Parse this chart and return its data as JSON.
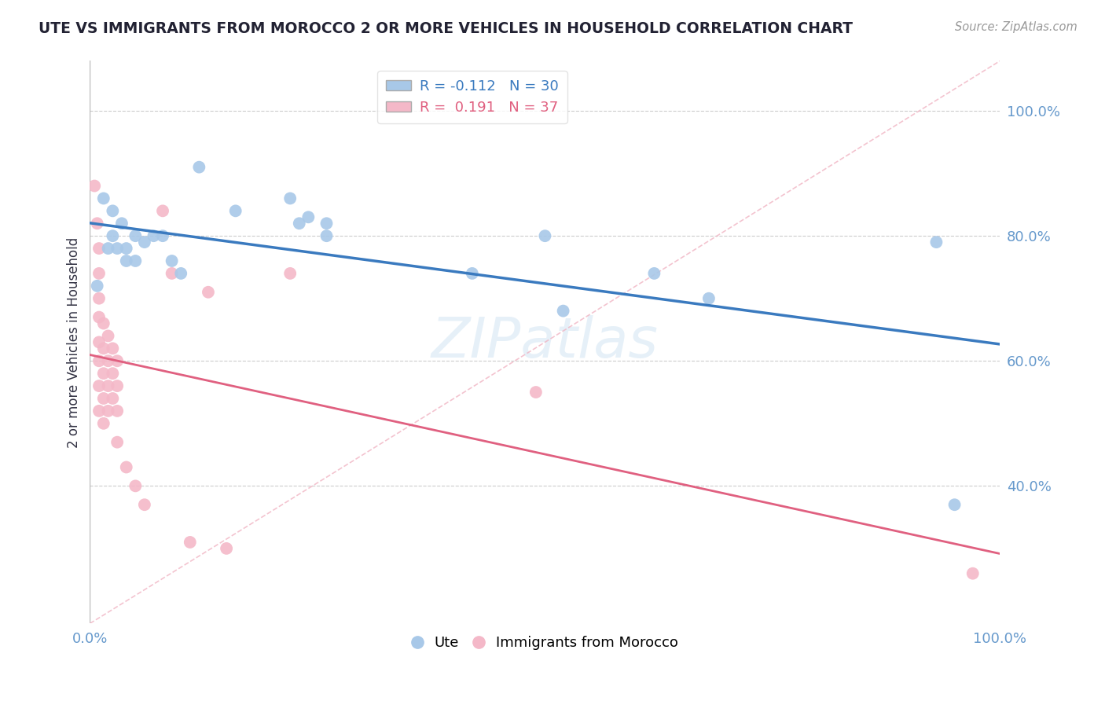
{
  "title": "UTE VS IMMIGRANTS FROM MOROCCO 2 OR MORE VEHICLES IN HOUSEHOLD CORRELATION CHART",
  "source": "Source: ZipAtlas.com",
  "ylabel": "2 or more Vehicles in Household",
  "legend_label1": "Ute",
  "legend_label2": "Immigrants from Morocco",
  "R1": -0.112,
  "N1": 30,
  "R2": 0.191,
  "N2": 37,
  "color_blue": "#a8c8e8",
  "color_pink": "#f4b8c8",
  "color_blue_line": "#3a7abf",
  "color_pink_line": "#e06080",
  "color_diag_line": "#f0b0c0",
  "background": "#ffffff",
  "grid_color": "#cccccc",
  "title_color": "#222233",
  "axis_label_color": "#6699cc",
  "blue_points": [
    [
      0.008,
      0.72
    ],
    [
      0.015,
      0.86
    ],
    [
      0.02,
      0.78
    ],
    [
      0.025,
      0.84
    ],
    [
      0.025,
      0.8
    ],
    [
      0.03,
      0.78
    ],
    [
      0.035,
      0.82
    ],
    [
      0.04,
      0.78
    ],
    [
      0.04,
      0.76
    ],
    [
      0.05,
      0.8
    ],
    [
      0.05,
      0.76
    ],
    [
      0.06,
      0.79
    ],
    [
      0.07,
      0.8
    ],
    [
      0.08,
      0.8
    ],
    [
      0.09,
      0.76
    ],
    [
      0.1,
      0.74
    ],
    [
      0.12,
      0.91
    ],
    [
      0.16,
      0.84
    ],
    [
      0.22,
      0.86
    ],
    [
      0.23,
      0.82
    ],
    [
      0.24,
      0.83
    ],
    [
      0.26,
      0.82
    ],
    [
      0.26,
      0.8
    ],
    [
      0.42,
      0.74
    ],
    [
      0.5,
      0.8
    ],
    [
      0.52,
      0.68
    ],
    [
      0.62,
      0.74
    ],
    [
      0.68,
      0.7
    ],
    [
      0.93,
      0.79
    ],
    [
      0.95,
      0.37
    ]
  ],
  "pink_points": [
    [
      0.005,
      0.88
    ],
    [
      0.008,
      0.82
    ],
    [
      0.01,
      0.78
    ],
    [
      0.01,
      0.74
    ],
    [
      0.01,
      0.7
    ],
    [
      0.01,
      0.67
    ],
    [
      0.01,
      0.63
    ],
    [
      0.01,
      0.6
    ],
    [
      0.01,
      0.56
    ],
    [
      0.01,
      0.52
    ],
    [
      0.015,
      0.66
    ],
    [
      0.015,
      0.62
    ],
    [
      0.015,
      0.58
    ],
    [
      0.015,
      0.54
    ],
    [
      0.015,
      0.5
    ],
    [
      0.02,
      0.64
    ],
    [
      0.02,
      0.6
    ],
    [
      0.02,
      0.56
    ],
    [
      0.02,
      0.52
    ],
    [
      0.025,
      0.62
    ],
    [
      0.025,
      0.58
    ],
    [
      0.025,
      0.54
    ],
    [
      0.03,
      0.6
    ],
    [
      0.03,
      0.56
    ],
    [
      0.03,
      0.52
    ],
    [
      0.03,
      0.47
    ],
    [
      0.04,
      0.43
    ],
    [
      0.05,
      0.4
    ],
    [
      0.06,
      0.37
    ],
    [
      0.08,
      0.84
    ],
    [
      0.09,
      0.74
    ],
    [
      0.11,
      0.31
    ],
    [
      0.13,
      0.71
    ],
    [
      0.15,
      0.3
    ],
    [
      0.22,
      0.74
    ],
    [
      0.49,
      0.55
    ],
    [
      0.97,
      0.26
    ]
  ]
}
